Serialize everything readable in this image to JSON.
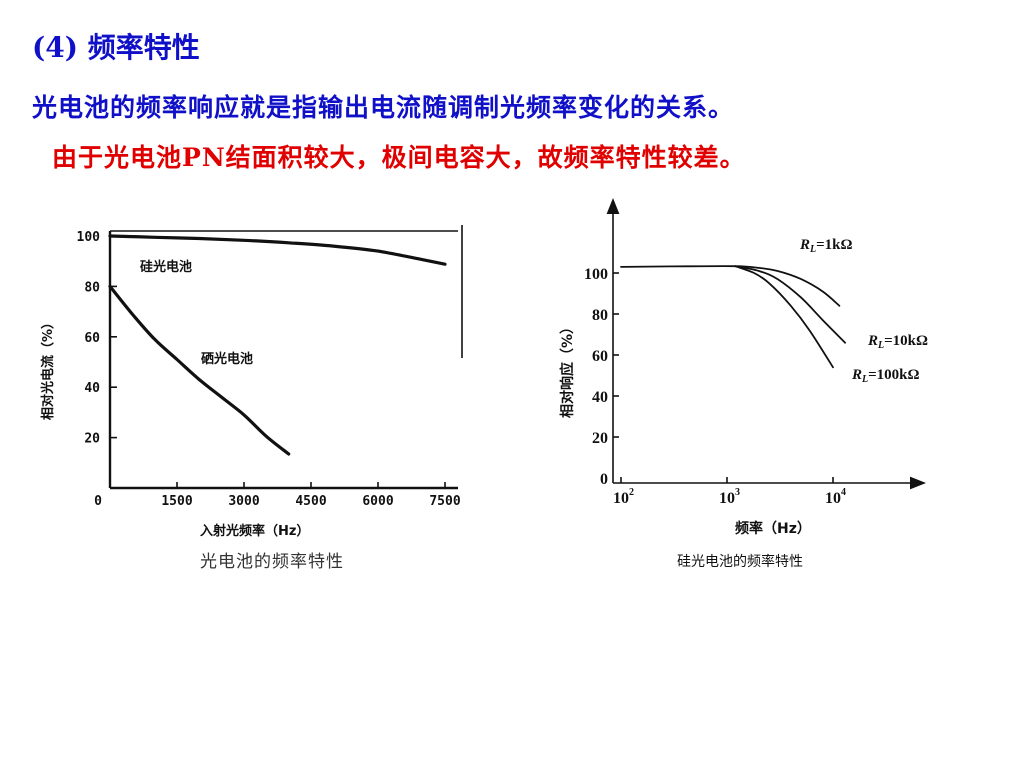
{
  "slide": {
    "heading_num": "(4)",
    "heading_text": " 频率特性",
    "line1": "光电池的频率响应就是指输出电流随调制光频率变化的关系。",
    "line2_a": "由于光电池",
    "line2_pn": "PN",
    "line2_b": "结面积较大，极间电容大，故频率特性较差。"
  },
  "chart_data": [
    {
      "type": "line",
      "caption": "光电池的频率特性",
      "xlabel": "入射光频率（Hz）",
      "ylabel": "相对光电流（%）",
      "xlim": [
        0,
        7500
      ],
      "ylim": [
        0,
        100
      ],
      "x_ticks": [
        "0",
        "1500",
        "3000",
        "4500",
        "6000",
        "7500"
      ],
      "y_ticks": [
        "20",
        "40",
        "60",
        "80",
        "100"
      ],
      "series": [
        {
          "name": "硅光电池",
          "x": [
            0,
            1000,
            2000,
            3000,
            4000,
            5000,
            6000,
            7000,
            7500
          ],
          "y": [
            100,
            99.5,
            99,
            98.3,
            97.3,
            96,
            94,
            90.6,
            88.8
          ]
        },
        {
          "name": "硒光电池",
          "x": [
            0,
            500,
            1000,
            1500,
            2000,
            2500,
            3000,
            3500,
            4000
          ],
          "y": [
            80,
            69,
            59,
            51,
            43,
            36,
            29,
            20.5,
            13.5
          ]
        }
      ]
    },
    {
      "type": "line",
      "caption": "硅光电池的频率特性",
      "xlabel": "频率（Hz）",
      "ylabel": "相对响应（%）",
      "x_scale": "log",
      "xlim": [
        100,
        10000
      ],
      "ylim": [
        0,
        100
      ],
      "x_ticks": [
        {
          "base": "10",
          "exp": "2"
        },
        {
          "base": "10",
          "exp": "3"
        },
        {
          "base": "10",
          "exp": "4"
        }
      ],
      "y_ticks": [
        "0",
        "20",
        "40",
        "60",
        "80",
        "100"
      ],
      "series": [
        {
          "name": "R_L=1kΩ",
          "label_base": "R",
          "label_sub": "L",
          "label_val": "=1kΩ",
          "x": [
            100,
            300,
            1200,
            2000,
            3000,
            5000,
            8000,
            11500
          ],
          "y": [
            103,
            103.2,
            103.3,
            102.5,
            101,
            97,
            91,
            84
          ]
        },
        {
          "name": "R_L=10kΩ",
          "label_base": "R",
          "label_sub": "L",
          "label_val": "=10kΩ",
          "x": [
            1200,
            2000,
            3000,
            5000,
            8000,
            13000
          ],
          "y": [
            103.3,
            101,
            97,
            88,
            77,
            66
          ]
        },
        {
          "name": "R_L=100kΩ",
          "label_base": "R",
          "label_sub": "L",
          "label_val": "=100kΩ",
          "x": [
            1200,
            1800,
            2500,
            4000,
            6000,
            10000
          ],
          "y": [
            103.3,
            100,
            95,
            84,
            72,
            54
          ]
        }
      ]
    }
  ]
}
